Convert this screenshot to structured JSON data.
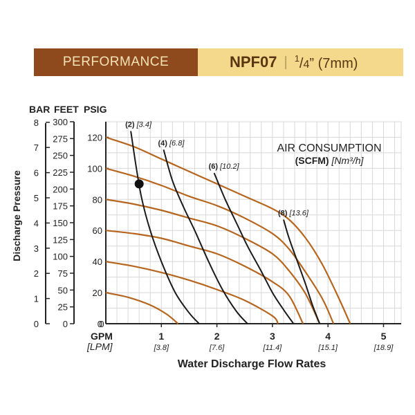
{
  "header": {
    "section_label": "PERFORMANCE",
    "model": "NPF07",
    "size_whole_num": "1",
    "size_whole_den": "4",
    "size_inch_mark": "”",
    "size_metric": "(7mm)",
    "colors": {
      "left_bg": "#8e4a1c",
      "left_text": "#f5e3b6",
      "right_bg": "#f4d98c",
      "right_text": "#5a3510"
    }
  },
  "chart_data": {
    "type": "line",
    "unit_headers": {
      "bar": "BAR",
      "feet": "FEET",
      "psig": "PSIG"
    },
    "ylabel": "Discharge Pressure",
    "xlabel": "Water Discharge Flow Rates",
    "x_unit_gpm": "GPM",
    "x_unit_lpm": "[LPM]",
    "xlim": [
      0,
      5.3
    ],
    "ylim_psig": [
      0,
      130
    ],
    "psig_ticks": [
      "0",
      "20",
      "40",
      "60",
      "80",
      "100",
      "120"
    ],
    "feet_ticks": [
      "0",
      "25",
      "50",
      "75",
      "100",
      "125",
      "150",
      "175",
      "200",
      "225",
      "250",
      "275",
      "300"
    ],
    "bar_ticks": [
      "0",
      "1",
      "2",
      "3",
      "4",
      "5",
      "6",
      "7",
      "8"
    ],
    "gpm_ticks": [
      "1",
      "2",
      "3",
      "4",
      "5"
    ],
    "lpm_ticks": [
      "[3.8]",
      "[7.6]",
      "[11.4]",
      "[15.1]",
      "[18.9]"
    ],
    "grid": true,
    "annotations": {
      "air_title": "AIR CONSUMPTION",
      "air_unit_scfm": "(SCFM)",
      "air_unit_metric": "[Nm³/h]"
    },
    "air_curves": [
      {
        "label": "(2)",
        "metric": "[3.4]",
        "points": [
          [
            0.45,
            124
          ],
          [
            0.55,
            100
          ],
          [
            0.65,
            80
          ],
          [
            0.8,
            60
          ],
          [
            1.0,
            40
          ],
          [
            1.25,
            20
          ],
          [
            1.5,
            7
          ],
          [
            1.68,
            0
          ]
        ]
      },
      {
        "label": "(4)",
        "metric": "[6.8]",
        "points": [
          [
            1.04,
            112
          ],
          [
            1.2,
            92
          ],
          [
            1.4,
            75
          ],
          [
            1.6,
            60
          ],
          [
            1.85,
            40
          ],
          [
            2.1,
            22
          ],
          [
            2.35,
            8
          ],
          [
            2.55,
            0
          ]
        ]
      },
      {
        "label": "(6)",
        "metric": "[10.2]",
        "points": [
          [
            1.95,
            97
          ],
          [
            2.15,
            80
          ],
          [
            2.35,
            65
          ],
          [
            2.55,
            50
          ],
          [
            2.78,
            35
          ],
          [
            3.0,
            20
          ],
          [
            3.2,
            9
          ],
          [
            3.38,
            0
          ]
        ]
      },
      {
        "label": "(8)",
        "metric": "[13.6]",
        "points": [
          [
            3.2,
            67
          ],
          [
            3.3,
            55
          ],
          [
            3.45,
            40
          ],
          [
            3.6,
            25
          ],
          [
            3.72,
            12
          ],
          [
            3.85,
            0
          ]
        ]
      }
    ],
    "pressure_curves": [
      {
        "psig_at_zero": 120,
        "points": [
          [
            0,
            120
          ],
          [
            0.5,
            114
          ],
          [
            1.0,
            106
          ],
          [
            1.5,
            98
          ],
          [
            2.0,
            90
          ],
          [
            2.5,
            82
          ],
          [
            3.0,
            74
          ],
          [
            3.3,
            67
          ],
          [
            3.6,
            55
          ],
          [
            3.9,
            38
          ],
          [
            4.2,
            16
          ],
          [
            4.4,
            0
          ]
        ]
      },
      {
        "psig_at_zero": 100,
        "points": [
          [
            0,
            100
          ],
          [
            0.5,
            95
          ],
          [
            1.0,
            89
          ],
          [
            1.5,
            82
          ],
          [
            2.0,
            76
          ],
          [
            2.5,
            68
          ],
          [
            3.0,
            58
          ],
          [
            3.3,
            48
          ],
          [
            3.6,
            33
          ],
          [
            3.9,
            16
          ],
          [
            4.1,
            0
          ]
        ]
      },
      {
        "psig_at_zero": 80,
        "points": [
          [
            0,
            80
          ],
          [
            0.5,
            77
          ],
          [
            1.0,
            73
          ],
          [
            1.5,
            68
          ],
          [
            2.0,
            63
          ],
          [
            2.5,
            55
          ],
          [
            3.0,
            45
          ],
          [
            3.3,
            34
          ],
          [
            3.6,
            19
          ],
          [
            3.85,
            0
          ]
        ]
      },
      {
        "psig_at_zero": 60,
        "points": [
          [
            0,
            60
          ],
          [
            0.5,
            58
          ],
          [
            1.0,
            55
          ],
          [
            1.5,
            50
          ],
          [
            2.0,
            45
          ],
          [
            2.5,
            37
          ],
          [
            3.0,
            27
          ],
          [
            3.3,
            18
          ],
          [
            3.55,
            0
          ]
        ]
      },
      {
        "psig_at_zero": 40,
        "points": [
          [
            0,
            40
          ],
          [
            0.5,
            37
          ],
          [
            1.0,
            33
          ],
          [
            1.5,
            28
          ],
          [
            2.0,
            22
          ],
          [
            2.5,
            15
          ],
          [
            3.0,
            5
          ],
          [
            3.1,
            0
          ]
        ]
      },
      {
        "psig_at_zero": 20,
        "points": [
          [
            0,
            20
          ],
          [
            0.4,
            17
          ],
          [
            0.8,
            12
          ],
          [
            1.1,
            6
          ],
          [
            1.3,
            0
          ]
        ]
      }
    ],
    "highlight_point": {
      "gpm": 0.6,
      "psig": 90
    },
    "colors": {
      "pressure_curve": "#b5651d",
      "air_curve": "#1a1a1a",
      "grid": "#d8d8d8",
      "axis": "#222222"
    }
  }
}
